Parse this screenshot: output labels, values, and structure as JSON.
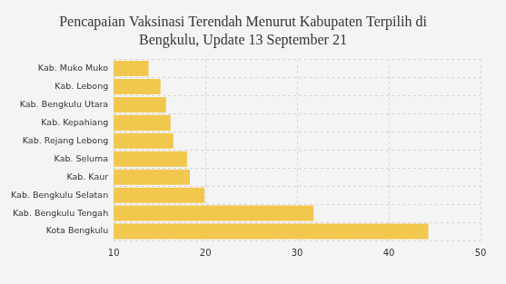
{
  "chart_data": {
    "type": "bar",
    "orientation": "horizontal",
    "title": [
      "Pencapaian Vaksinasi Terendah Menurut Kabupaten Terpilih di",
      "Bengkulu, Update 13 September 21"
    ],
    "categories": [
      "Kab. Muko Muko",
      "Kab. Lebong",
      "Kab. Bengkulu Utara",
      "Kab. Kepahiang",
      "Kab. Rejang Lebong",
      "Kab. Seluma",
      "Kab. Kaur",
      "Kab. Bengkulu Selatan",
      "Kab. Bengkulu Tengah",
      "Kota Bengkulu"
    ],
    "values": [
      13.8,
      15.1,
      15.7,
      16.2,
      16.5,
      18.0,
      18.3,
      19.9,
      31.8,
      44.3
    ],
    "color": "#f2c74e",
    "xlim": [
      10,
      50
    ],
    "xticks": [
      10,
      20,
      30,
      40,
      50
    ],
    "grid": true
  }
}
